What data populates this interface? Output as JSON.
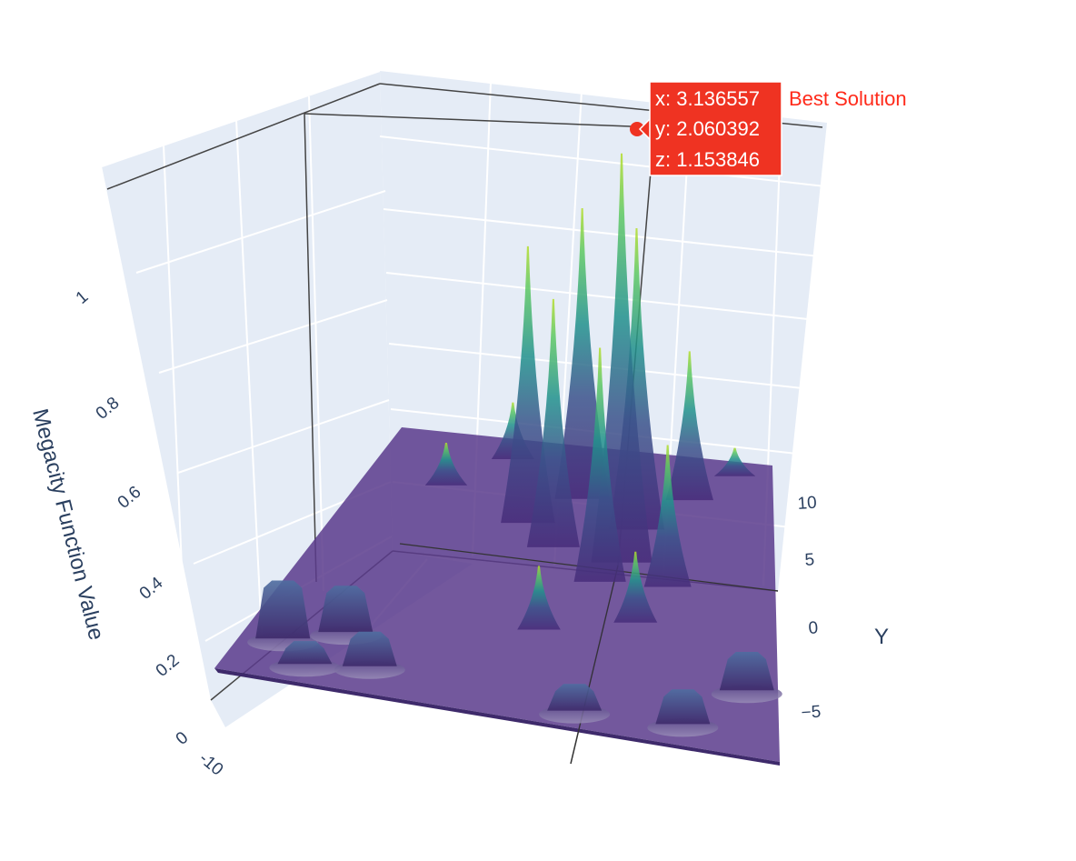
{
  "chart_data": {
    "type": "surface",
    "scene_background": "#e5ecf6",
    "grid_color": "#ffffff",
    "colorscale": "Viridis",
    "surface_opacity": 0.75,
    "axes": {
      "x": {
        "ticks": [
          "-10"
        ],
        "title": ""
      },
      "y": {
        "ticks": [
          "10",
          "5",
          "0",
          "−5"
        ],
        "title": "Y"
      },
      "z": {
        "ticks": [
          "0",
          "0.2",
          "0.4",
          "0.6",
          "0.8",
          "1"
        ],
        "title": "Megacity Function Value",
        "range": [
          0,
          1.15
        ]
      }
    },
    "peaks": [
      {
        "x": -1.5,
        "y": 4.0,
        "z": 0.78
      },
      {
        "x": 0.6,
        "y": 6.2,
        "z": 0.82
      },
      {
        "x": 0.0,
        "y": 2.5,
        "z": 0.7
      },
      {
        "x": 2.4,
        "y": 0.5,
        "z": 0.66
      },
      {
        "x": 3.136557,
        "y": 2.060392,
        "z": 1.153846
      },
      {
        "x": 3.5,
        "y": 4.5,
        "z": 0.85
      },
      {
        "x": 5.8,
        "y": 7.0,
        "z": 0.42
      },
      {
        "x": 5.3,
        "y": 0.8,
        "z": 0.4
      },
      {
        "x": 4.2,
        "y": -2.0,
        "z": 0.2
      },
      {
        "x": 0.5,
        "y": -3.5,
        "z": 0.18
      },
      {
        "x": -3.5,
        "y": 8.5,
        "z": 0.16
      },
      {
        "x": -6.0,
        "y": 6.0,
        "z": 0.12
      },
      {
        "x": 8.0,
        "y": 9.0,
        "z": 0.08
      }
    ],
    "plateaus": [
      {
        "x": -8.5,
        "y": -7.0,
        "z": 0.26
      },
      {
        "x": -6.5,
        "y": -5.8,
        "z": 0.2
      },
      {
        "x": -7.2,
        "y": -8.6,
        "z": 0.08
      },
      {
        "x": -5.0,
        "y": -8.0,
        "z": 0.14
      },
      {
        "x": 6.5,
        "y": -8.5,
        "z": 0.14
      },
      {
        "x": 8.8,
        "y": -5.5,
        "z": 0.16
      },
      {
        "x": 2.6,
        "y": -8.8,
        "z": 0.1
      }
    ],
    "best_solution": {
      "name": "Best Solution",
      "x": 3.136557,
      "y": 2.060392,
      "z": 1.153846,
      "color": "#ef3322",
      "label_x": "x: 3.136557",
      "label_y": "y: 2.060392",
      "label_z": "z: 1.153846"
    }
  }
}
